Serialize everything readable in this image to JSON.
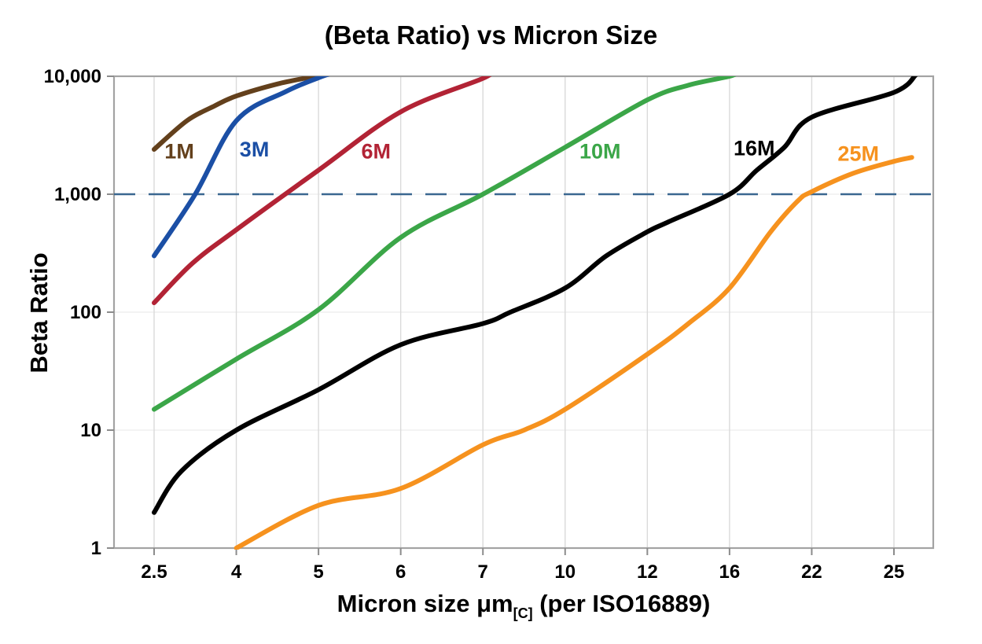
{
  "chart_data": {
    "type": "line",
    "title": "(Beta Ratio) vs Micron Size",
    "ylabel": "Beta Ratio",
    "xlabel_prefix": "Micron size μm",
    "xlabel_subscript": "[C]",
    "xlabel_suffix": " (per ISO16889)",
    "x_ticks": [
      2.5,
      4,
      5,
      6,
      7,
      10,
      12,
      16,
      22,
      25
    ],
    "x_tick_labels": [
      "2.5",
      "4",
      "5",
      "6",
      "7",
      "10",
      "12",
      "16",
      "22",
      "25"
    ],
    "y_scale": "log",
    "ylim": [
      1,
      10000
    ],
    "y_ticks": [
      1,
      10,
      100,
      1000,
      10000
    ],
    "y_tick_labels": [
      "1",
      "10",
      "100",
      "1,000",
      "10,000"
    ],
    "grid": {
      "vertical": true,
      "horizontal": "faint"
    },
    "legend_position": "labels-on-chart",
    "ref_line": {
      "value": 1000,
      "style": "dashed",
      "color": "#3A6790"
    },
    "axis_color": "#A3A3A3",
    "grid_color": "#DADADA",
    "faint_grid_color": "#ECECEC",
    "tick_color": "#8C8C8C",
    "series": [
      {
        "name": "1M",
        "color": "#63401C",
        "label_at": {
          "mu": 2.96,
          "value": 2300
        },
        "points": [
          [
            2.5,
            2400
          ],
          [
            3.1,
            4200
          ],
          [
            3.6,
            5600
          ],
          [
            4,
            6800
          ],
          [
            4.5,
            8600
          ],
          [
            4.95,
            10000
          ],
          [
            5.15,
            10900
          ]
        ]
      },
      {
        "name": "3M",
        "color": "#1B4FA5",
        "label_at": {
          "mu": 4.22,
          "value": 2400
        },
        "points": [
          [
            2.5,
            300
          ],
          [
            3.25,
            1000
          ],
          [
            4,
            4200
          ],
          [
            4.6,
            7400
          ],
          [
            5.05,
            10000
          ],
          [
            5.25,
            11000
          ]
        ]
      },
      {
        "name": "6M",
        "color": "#B22335",
        "label_at": {
          "mu": 5.7,
          "value": 2300
        },
        "points": [
          [
            2.5,
            120
          ],
          [
            3.2,
            260
          ],
          [
            4,
            500
          ],
          [
            5,
            1600
          ],
          [
            6,
            5000
          ],
          [
            7,
            9600
          ],
          [
            7.25,
            11000
          ]
        ]
      },
      {
        "name": "10M",
        "color": "#3BA648",
        "label_at": {
          "mu": 10.85,
          "value": 2300
        },
        "points": [
          [
            2.5,
            15
          ],
          [
            4,
            40
          ],
          [
            5,
            105
          ],
          [
            6,
            430
          ],
          [
            7,
            1000
          ],
          [
            10,
            2500
          ],
          [
            12,
            6300
          ],
          [
            14,
            8400
          ],
          [
            16,
            10000
          ],
          [
            16.6,
            10800
          ]
        ]
      },
      {
        "name": "16M",
        "color": "#000000",
        "label_at": {
          "mu": 17.8,
          "value": 2450
        },
        "points": [
          [
            2.5,
            2
          ],
          [
            3,
            4.5
          ],
          [
            4,
            10
          ],
          [
            5,
            22
          ],
          [
            6,
            53
          ],
          [
            7,
            80
          ],
          [
            8,
            100
          ],
          [
            10,
            160
          ],
          [
            11,
            300
          ],
          [
            12,
            480
          ],
          [
            13,
            580
          ],
          [
            16,
            1000
          ],
          [
            18,
            1600
          ],
          [
            20,
            2500
          ],
          [
            22,
            4500
          ],
          [
            25,
            7300
          ],
          [
            25.8,
            10300
          ]
        ]
      },
      {
        "name": "25M",
        "color": "#F6921E",
        "label_at": {
          "mu": 23.7,
          "value": 2200
        },
        "points": [
          [
            4,
            1
          ],
          [
            5,
            2.3
          ],
          [
            6,
            3.2
          ],
          [
            7,
            7.5
          ],
          [
            8.5,
            10
          ],
          [
            10,
            15
          ],
          [
            12,
            44
          ],
          [
            14,
            80
          ],
          [
            16,
            160
          ],
          [
            19,
            480
          ],
          [
            21,
            880
          ],
          [
            22,
            1050
          ],
          [
            23.5,
            1500
          ],
          [
            25,
            1900
          ],
          [
            25.65,
            2050
          ]
        ]
      }
    ]
  }
}
